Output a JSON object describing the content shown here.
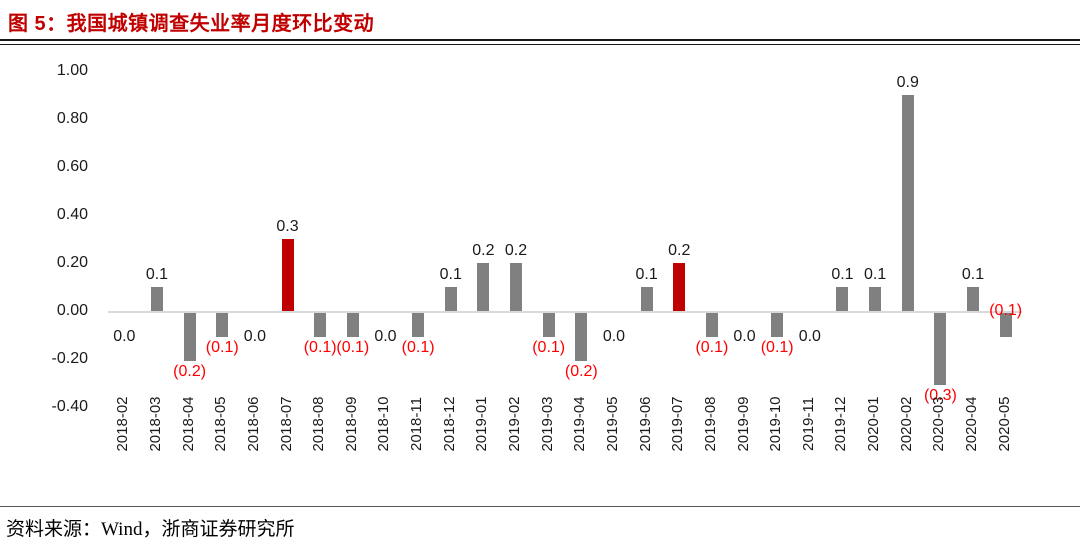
{
  "title": "图 5：我国城镇调查失业率月度环比变动",
  "footer": {
    "source": "资料来源：Wind，浙商证券研究所"
  },
  "chart_data": {
    "type": "bar",
    "title": "我国城镇调查失业率月度环比变动",
    "xlabel": "",
    "ylabel": "",
    "ylim": [
      -0.4,
      1.0
    ],
    "grid": false,
    "legend": "none",
    "colors": {
      "bar_default": "#808080",
      "bar_highlight": "#c00000",
      "label_positive": "#1a1a1a",
      "label_negative": "#ff0000",
      "axis_line": "#d9d9d9",
      "title_accent": "#c00000"
    },
    "yticks": [
      {
        "label": "1.00",
        "value": 1.0
      },
      {
        "label": "0.80",
        "value": 0.8
      },
      {
        "label": "0.60",
        "value": 0.6
      },
      {
        "label": "0.40",
        "value": 0.4
      },
      {
        "label": "0.20",
        "value": 0.2
      },
      {
        "label": "0.00",
        "value": 0.0
      },
      {
        "label": "-0.20",
        "value": -0.2
      },
      {
        "label": "-0.40",
        "value": -0.4
      }
    ],
    "points": [
      {
        "category": "2018-02",
        "value": 0.0,
        "label": "0.0"
      },
      {
        "category": "2018-03",
        "value": 0.1,
        "label": "0.1"
      },
      {
        "category": "2018-04",
        "value": -0.2,
        "label": "(0.2)"
      },
      {
        "category": "2018-05",
        "value": -0.1,
        "label": "(0.1)"
      },
      {
        "category": "2018-06",
        "value": 0.0,
        "label": "0.0"
      },
      {
        "category": "2018-07",
        "value": 0.3,
        "label": "0.3",
        "highlight": true
      },
      {
        "category": "2018-08",
        "value": -0.1,
        "label": "(0.1)"
      },
      {
        "category": "2018-09",
        "value": -0.1,
        "label": "(0.1)"
      },
      {
        "category": "2018-10",
        "value": 0.0,
        "label": "0.0"
      },
      {
        "category": "2018-11",
        "value": -0.1,
        "label": "(0.1)"
      },
      {
        "category": "2018-12",
        "value": 0.1,
        "label": "0.1"
      },
      {
        "category": "2019-01",
        "value": 0.2,
        "label": "0.2"
      },
      {
        "category": "2019-02",
        "value": 0.2,
        "label": "0.2"
      },
      {
        "category": "2019-03",
        "value": -0.1,
        "label": "(0.1)"
      },
      {
        "category": "2019-04",
        "value": -0.2,
        "label": "(0.2)"
      },
      {
        "category": "2019-05",
        "value": 0.0,
        "label": "0.0"
      },
      {
        "category": "2019-06",
        "value": 0.1,
        "label": "0.1"
      },
      {
        "category": "2019-07",
        "value": 0.2,
        "label": "0.2",
        "highlight": true
      },
      {
        "category": "2019-08",
        "value": -0.1,
        "label": "(0.1)"
      },
      {
        "category": "2019-09",
        "value": 0.0,
        "label": "0.0"
      },
      {
        "category": "2019-10",
        "value": -0.1,
        "label": "(0.1)"
      },
      {
        "category": "2019-11",
        "value": 0.0,
        "label": "0.0"
      },
      {
        "category": "2019-12",
        "value": 0.1,
        "label": "0.1"
      },
      {
        "category": "2020-01",
        "value": 0.1,
        "label": "0.1"
      },
      {
        "category": "2020-02",
        "value": 0.9,
        "label": "0.9"
      },
      {
        "category": "2020-03",
        "value": -0.3,
        "label": "(0.3)"
      },
      {
        "category": "2020-04",
        "value": 0.1,
        "label": "0.1"
      },
      {
        "category": "2020-05",
        "value": -0.1,
        "label": "(0.1)",
        "label_position": "axis"
      }
    ]
  }
}
